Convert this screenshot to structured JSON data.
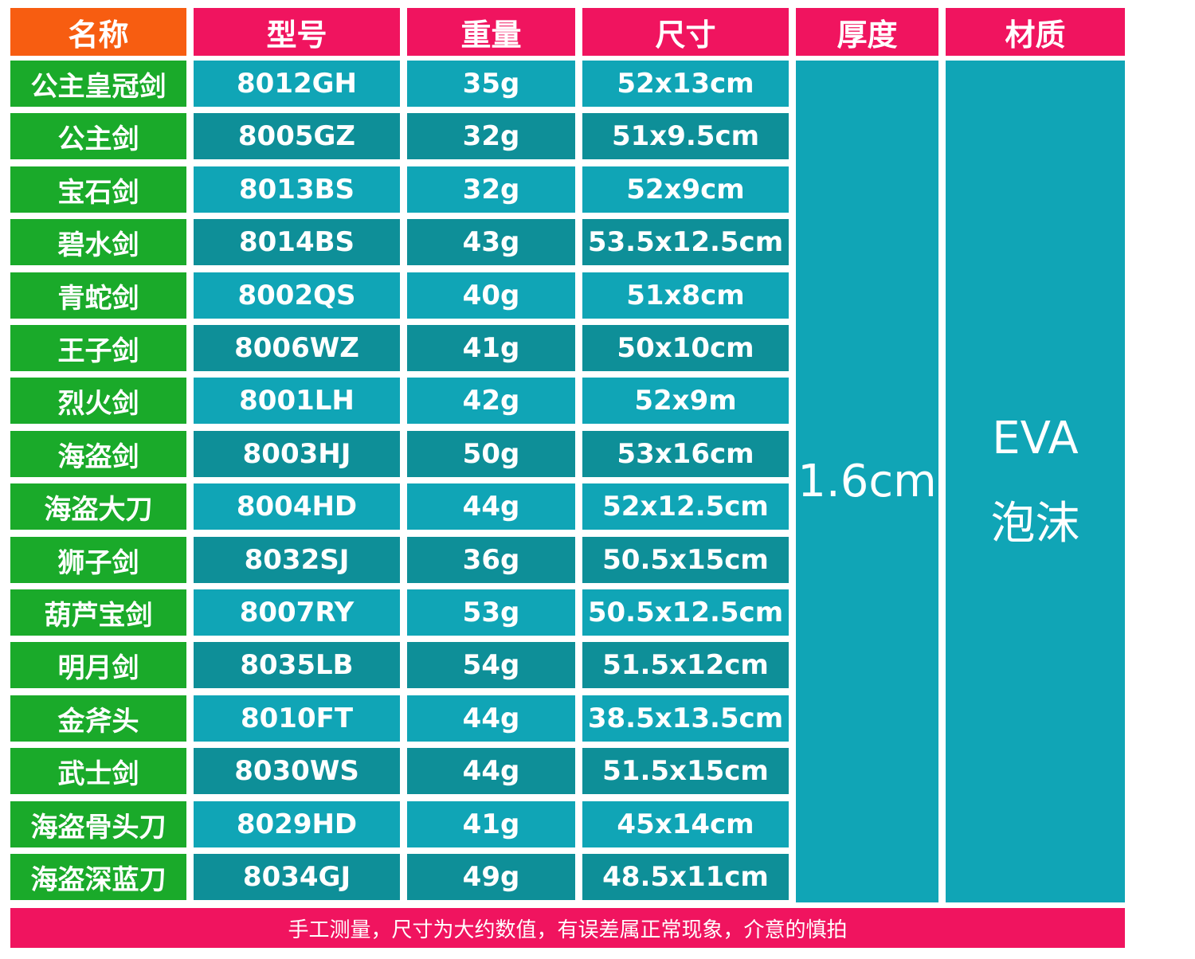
{
  "headers": [
    "名称",
    "型号",
    "重量",
    "尺寸",
    "厚度",
    "材质"
  ],
  "rows": [
    {
      "name": "公主皇冠剑",
      "model": "8012GH",
      "weight": "35g",
      "size": "52x13cm"
    },
    {
      "name": "公主剑",
      "model": "8005GZ",
      "weight": "32g",
      "size": "51x9.5cm"
    },
    {
      "name": "宝石剑",
      "model": "8013BS",
      "weight": "32g",
      "size": "52x9cm"
    },
    {
      "name": "碧水剑",
      "model": "8014BS",
      "weight": "43g",
      "size": "53.5x12.5cm"
    },
    {
      "name": "青蛇剑",
      "model": "8002QS",
      "weight": "40g",
      "size": "51x8cm"
    },
    {
      "name": "王子剑",
      "model": "8006WZ",
      "weight": "41g",
      "size": "50x10cm"
    },
    {
      "name": "烈火剑",
      "model": "8001LH",
      "weight": "42g",
      "size": "52x9m"
    },
    {
      "name": "海盗剑",
      "model": "8003HJ",
      "weight": "50g",
      "size": "53x16cm"
    },
    {
      "name": "海盗大刀",
      "model": "8004HD",
      "weight": "44g",
      "size": "52x12.5cm"
    },
    {
      "name": "狮子剑",
      "model": "8032SJ",
      "weight": "36g",
      "size": "50.5x15cm"
    },
    {
      "name": "葫芦宝剑",
      "model": "8007RY",
      "weight": "53g",
      "size": "50.5x12.5cm"
    },
    {
      "name": "明月剑",
      "model": "8035LB",
      "weight": "54g",
      "size": "51.5x12cm"
    },
    {
      "name": "金斧头",
      "model": "8010FT",
      "weight": "44g",
      "size": "38.5x13.5cm"
    },
    {
      "name": "武士剑",
      "model": "8030WS",
      "weight": "44g",
      "size": "51.5x15cm"
    },
    {
      "name": "海盗骨头刀",
      "model": "8029HD",
      "weight": "41g",
      "size": "45x14cm"
    },
    {
      "name": "海盗深蓝刀",
      "model": "8034GJ",
      "weight": "49g",
      "size": "48.5x11cm"
    }
  ],
  "thickness": "1.6cm",
  "material": [
    "EVA",
    "泡沫"
  ],
  "footer": "手工测量，尺寸为大约数值，有误差属正常现象，介意的慎拍",
  "colors": {
    "header": "#f0145f",
    "name_header": "#f75d11",
    "name_cell": "#1aaa2a",
    "row_light": "#10a5b6",
    "row_dark": "#0e8f98",
    "footer": "#f0145f"
  }
}
